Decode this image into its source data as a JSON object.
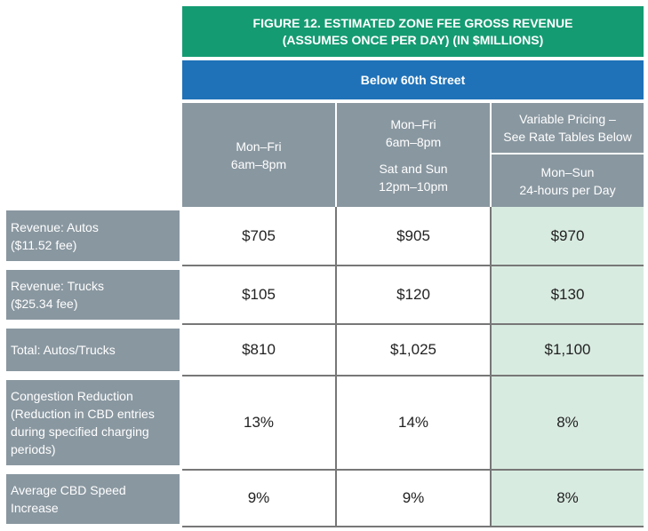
{
  "figure": {
    "title_line1": "FIGURE 12. ESTIMATED ZONE FEE GROSS REVENUE",
    "title_line2": "(ASSUMES ONCE PER DAY) (IN $MILLIONS)",
    "subtitle": "Below 60th Street"
  },
  "columns": [
    {
      "line1": "Mon–Fri",
      "line2": "6am–8pm"
    },
    {
      "line1": "Mon–Fri",
      "line2": "6am–8pm",
      "line3": "Sat and Sun",
      "line4": "12pm–10pm"
    },
    {
      "top_line1": "Variable Pricing –",
      "top_line2": "See Rate Tables Below",
      "line1": "Mon–Sun",
      "line2": "24-hours per Day"
    }
  ],
  "rows": [
    {
      "label_line1": "Revenue: Autos",
      "label_line2": "($11.52 fee)",
      "values": [
        "$705",
        "$905",
        "$970"
      ]
    },
    {
      "label_line1": "Revenue: Trucks",
      "label_line2": "($25.34 fee)",
      "values": [
        "$105",
        "$120",
        "$130"
      ]
    },
    {
      "label_line1": "Total: Autos/Trucks",
      "values": [
        "$810",
        "$1,025",
        "$1,100"
      ]
    },
    {
      "label_line1": "Congestion Reduction",
      "label_line2": "(Reduction in CBD entries",
      "label_line3": "during specified charging",
      "label_line4": "periods)",
      "values": [
        "13%",
        "14%",
        "8%"
      ]
    },
    {
      "label_line1": "Average CBD Speed",
      "label_line2": "Increase",
      "values": [
        "9%",
        "9%",
        "8%"
      ]
    }
  ],
  "colors": {
    "title_bg": "#159b72",
    "subtitle_bg": "#1f72b8",
    "header_bg": "#8997a0",
    "highlight_bg": "#d8ebe1"
  }
}
